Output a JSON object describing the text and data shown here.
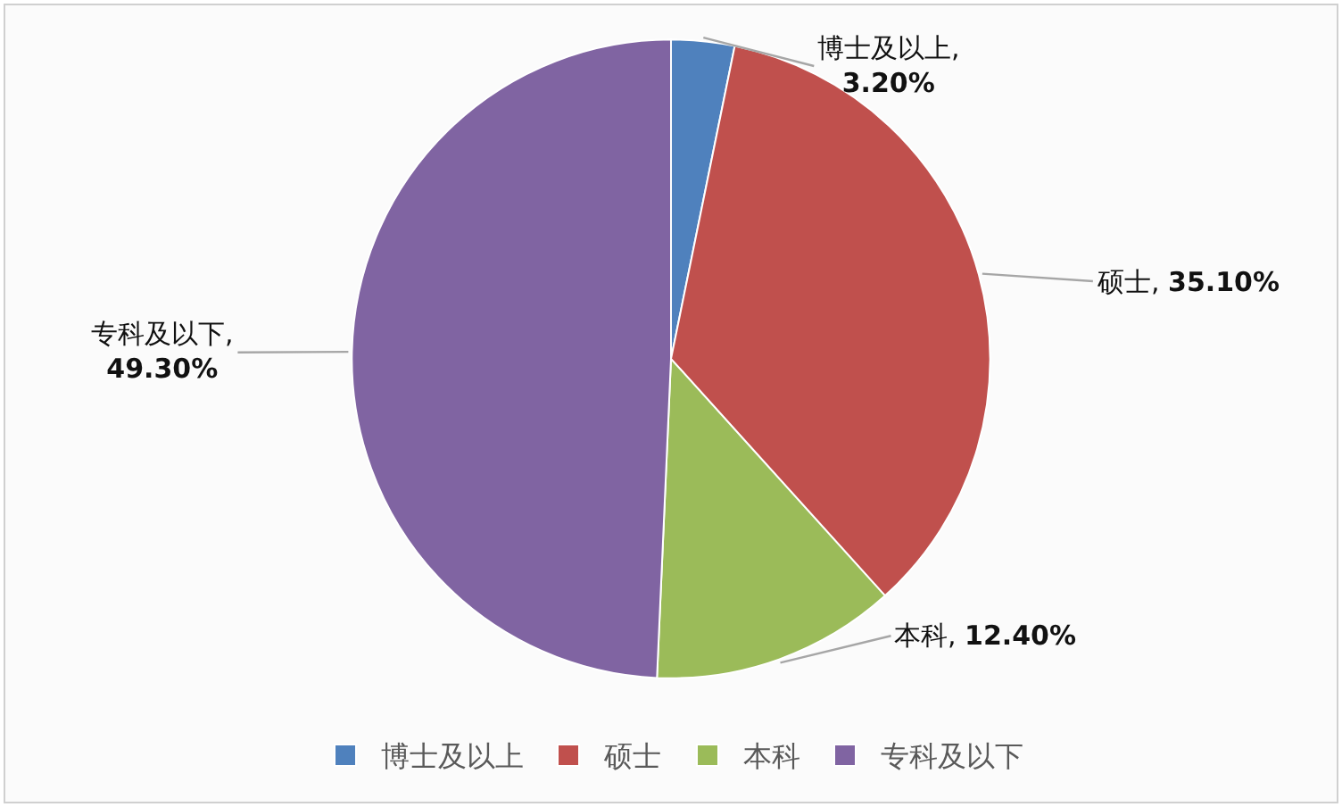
{
  "chart_data": {
    "type": "pie",
    "categories": [
      "博士及以上",
      "硕士",
      "本科",
      "专科及以下"
    ],
    "values": [
      3.2,
      35.1,
      12.4,
      49.3
    ],
    "colors": [
      "#4f81bd",
      "#c0504d",
      "#9bbb59",
      "#8064a2"
    ],
    "value_labels": [
      "博士及以上, 3.20%",
      "硕士, 35.10%",
      "本科, 12.40%",
      "专科及以下, 49.30%"
    ],
    "legend": "bottom"
  }
}
